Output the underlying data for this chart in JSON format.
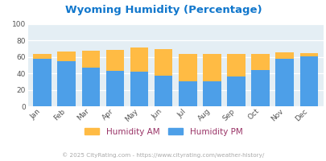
{
  "months": [
    "Jan",
    "Feb",
    "Mar",
    "Apr",
    "May",
    "Jun",
    "Jul",
    "Aug",
    "Sep",
    "Oct",
    "Nov",
    "Dec"
  ],
  "humidity_pm": [
    58,
    55,
    47,
    43,
    42,
    37,
    30,
    30,
    36,
    44,
    58,
    61
  ],
  "humidity_am_extra": [
    6,
    12,
    21,
    26,
    30,
    33,
    34,
    34,
    28,
    20,
    8,
    4
  ],
  "color_pm": "#4D9FE8",
  "color_am": "#FFBB44",
  "title": "Wyoming Humidity (Percentage)",
  "title_color": "#1177CC",
  "bg_color": "#E4EEF4",
  "ylim": [
    0,
    100
  ],
  "yticks": [
    0,
    20,
    40,
    60,
    80,
    100
  ],
  "legend_am": "Humidity AM",
  "legend_pm": "Humidity PM",
  "legend_label_color": "#993366",
  "footer": "© 2025 CityRating.com - https://www.cityrating.com/weather-history/",
  "footer_color": "#AAAAAA",
  "bar_width": 0.75
}
